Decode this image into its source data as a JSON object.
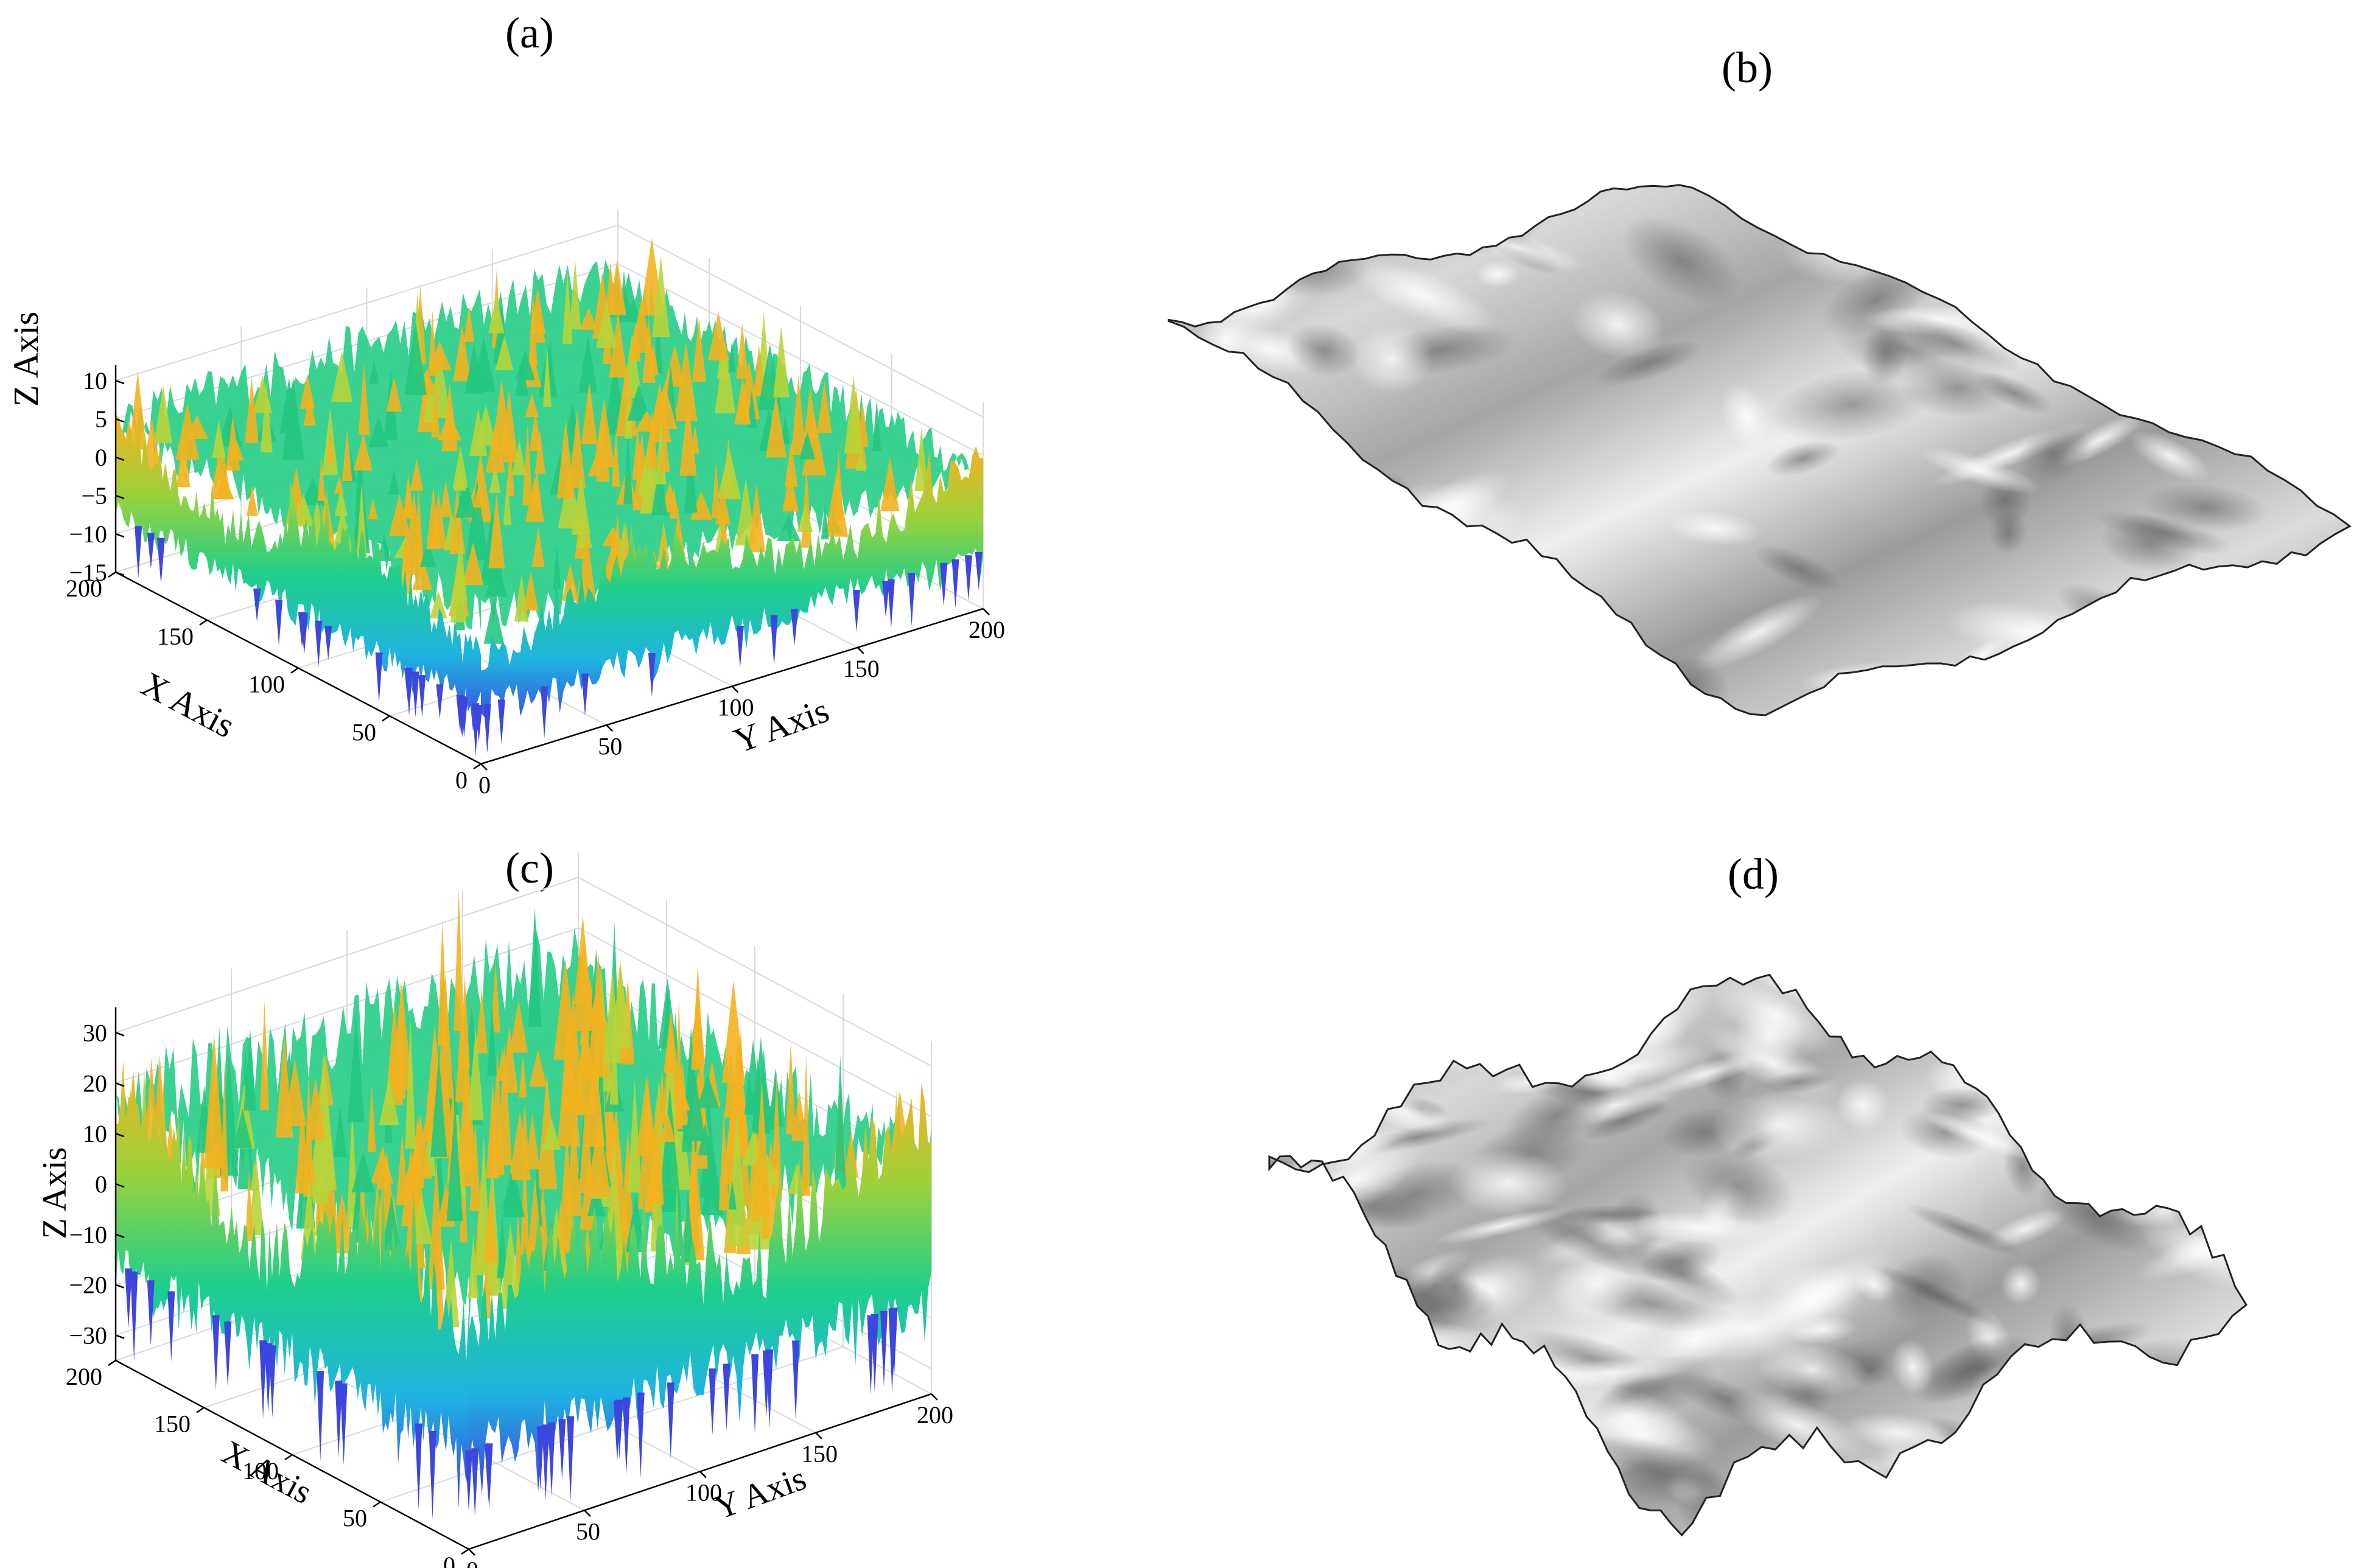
{
  "panels": {
    "a": {
      "label": "(a)"
    },
    "b": {
      "label": "(b)"
    },
    "c": {
      "label": "(c)"
    },
    "d": {
      "label": "(d)"
    }
  },
  "colors": {
    "low": "#3b3fe0",
    "mid_low": "#1fb4e0",
    "mid": "#1fcf8a",
    "mid_high": "#9bd23b",
    "high": "#f5b21f",
    "render_base": "#9a9a9a",
    "render_highlight": "#f2f2f2",
    "render_edge": "#222222"
  },
  "chart_data": [
    {
      "panel": "(a)",
      "type": "surface",
      "xlabel": "X Axis",
      "ylabel": "Y Axis",
      "zlabel": "Z Axis",
      "xlim": [
        0,
        200
      ],
      "ylim": [
        0,
        200
      ],
      "zlim": [
        -15,
        12
      ],
      "x_ticks": [
        "0",
        "50",
        "100",
        "150",
        "200"
      ],
      "y_ticks": [
        "0",
        "50",
        "100",
        "150",
        "200"
      ],
      "z_ticks": [
        "10",
        "5",
        "0",
        "−5",
        "−10",
        "−15"
      ],
      "z_tick_values": [
        10,
        5,
        0,
        -5,
        -10,
        -15
      ],
      "colormap": "parula",
      "grid": true
    },
    {
      "panel": "(b)",
      "type": "rendered_surface",
      "style": "gray metallic"
    },
    {
      "panel": "(c)",
      "type": "surface",
      "xlabel": "X Axis",
      "ylabel": "Y Axis",
      "zlabel": "Z Axis",
      "xlim": [
        0,
        200
      ],
      "ylim": [
        0,
        200
      ],
      "zlim": [
        -35,
        35
      ],
      "x_ticks": [
        "0",
        "50",
        "100",
        "150",
        "200"
      ],
      "y_ticks": [
        "0",
        "50",
        "100",
        "150",
        "200"
      ],
      "z_ticks": [
        "30",
        "20",
        "10",
        "0",
        "−10",
        "−20",
        "−30"
      ],
      "z_tick_values": [
        30,
        20,
        10,
        0,
        -10,
        -20,
        -30
      ],
      "colormap": "parula",
      "grid": true
    },
    {
      "panel": "(d)",
      "type": "rendered_surface",
      "style": "gray metallic"
    }
  ]
}
